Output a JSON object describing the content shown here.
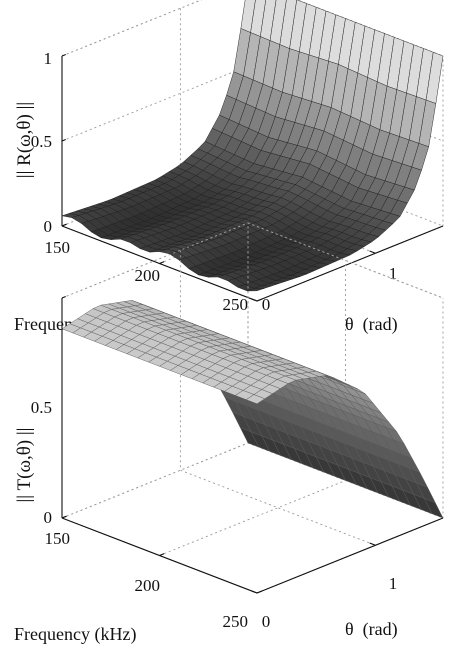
{
  "chart_data": [
    {
      "type": "surface",
      "zlabel": "|| R(ω,θ) ||",
      "xlabel": "Frequency (kHz)",
      "ylabel": "θ  (rad)",
      "xlim": [
        150,
        250
      ],
      "ylim": [
        0,
        1.5708
      ],
      "zlim": [
        0,
        1
      ],
      "x_ticks": [
        "150",
        "200",
        "250"
      ],
      "y_ticks": [
        "0",
        "1"
      ],
      "z_ticks": [
        "0",
        "0.5",
        "1"
      ],
      "grid": true,
      "colormap": "grayscale (dark at low values, light at high values)",
      "shape": "low ripple around 0.02–0.08 for θ below ~1 rad, rising steeply to 1 as θ approaches π/2",
      "surface": {
        "frequency": [
          150,
          175,
          200,
          225,
          250
        ],
        "theta": [
          0,
          0.4,
          0.8,
          1.0,
          1.2,
          1.35,
          1.45,
          1.5,
          1.55,
          1.5708
        ],
        "z": [
          [
            0.06,
            0.04,
            0.05,
            0.08,
            0.15,
            0.3,
            0.5,
            0.7,
            0.88,
            1.0
          ],
          [
            0.03,
            0.02,
            0.03,
            0.06,
            0.13,
            0.28,
            0.49,
            0.69,
            0.88,
            1.0
          ],
          [
            0.07,
            0.05,
            0.06,
            0.09,
            0.16,
            0.31,
            0.51,
            0.71,
            0.89,
            1.0
          ],
          [
            0.03,
            0.02,
            0.03,
            0.06,
            0.13,
            0.28,
            0.49,
            0.69,
            0.88,
            1.0
          ],
          [
            0.06,
            0.04,
            0.05,
            0.08,
            0.15,
            0.3,
            0.5,
            0.7,
            0.88,
            1.0
          ]
        ]
      }
    },
    {
      "type": "surface",
      "zlabel": "|| T(ω,θ) ||",
      "xlabel": "Frequency (kHz)",
      "ylabel": "θ  (rad)",
      "xlim": [
        150,
        250
      ],
      "ylim": [
        0,
        1.5708
      ],
      "zlim": [
        0,
        0.5
      ],
      "x_ticks": [
        "150",
        "200",
        "250"
      ],
      "y_ticks": [
        "0",
        "1"
      ],
      "z_ticks": [
        "0",
        "0.5"
      ],
      "grid": true,
      "colormap": "grayscale (light at high values, dark at low values)",
      "shape": "smooth, nearly independent of frequency; about 0.43 at θ=0, slight rise, then decreasing to 0 at θ=π/2",
      "surface": {
        "frequency": [
          150,
          200,
          250
        ],
        "theta": [
          0,
          0.3,
          0.6,
          0.9,
          1.2,
          1.4,
          1.5708
        ],
        "z": [
          [
            0.43,
            0.45,
            0.43,
            0.36,
            0.23,
            0.11,
            0.0
          ],
          [
            0.43,
            0.45,
            0.43,
            0.36,
            0.23,
            0.11,
            0.0
          ],
          [
            0.43,
            0.45,
            0.43,
            0.36,
            0.23,
            0.11,
            0.0
          ]
        ]
      }
    }
  ]
}
